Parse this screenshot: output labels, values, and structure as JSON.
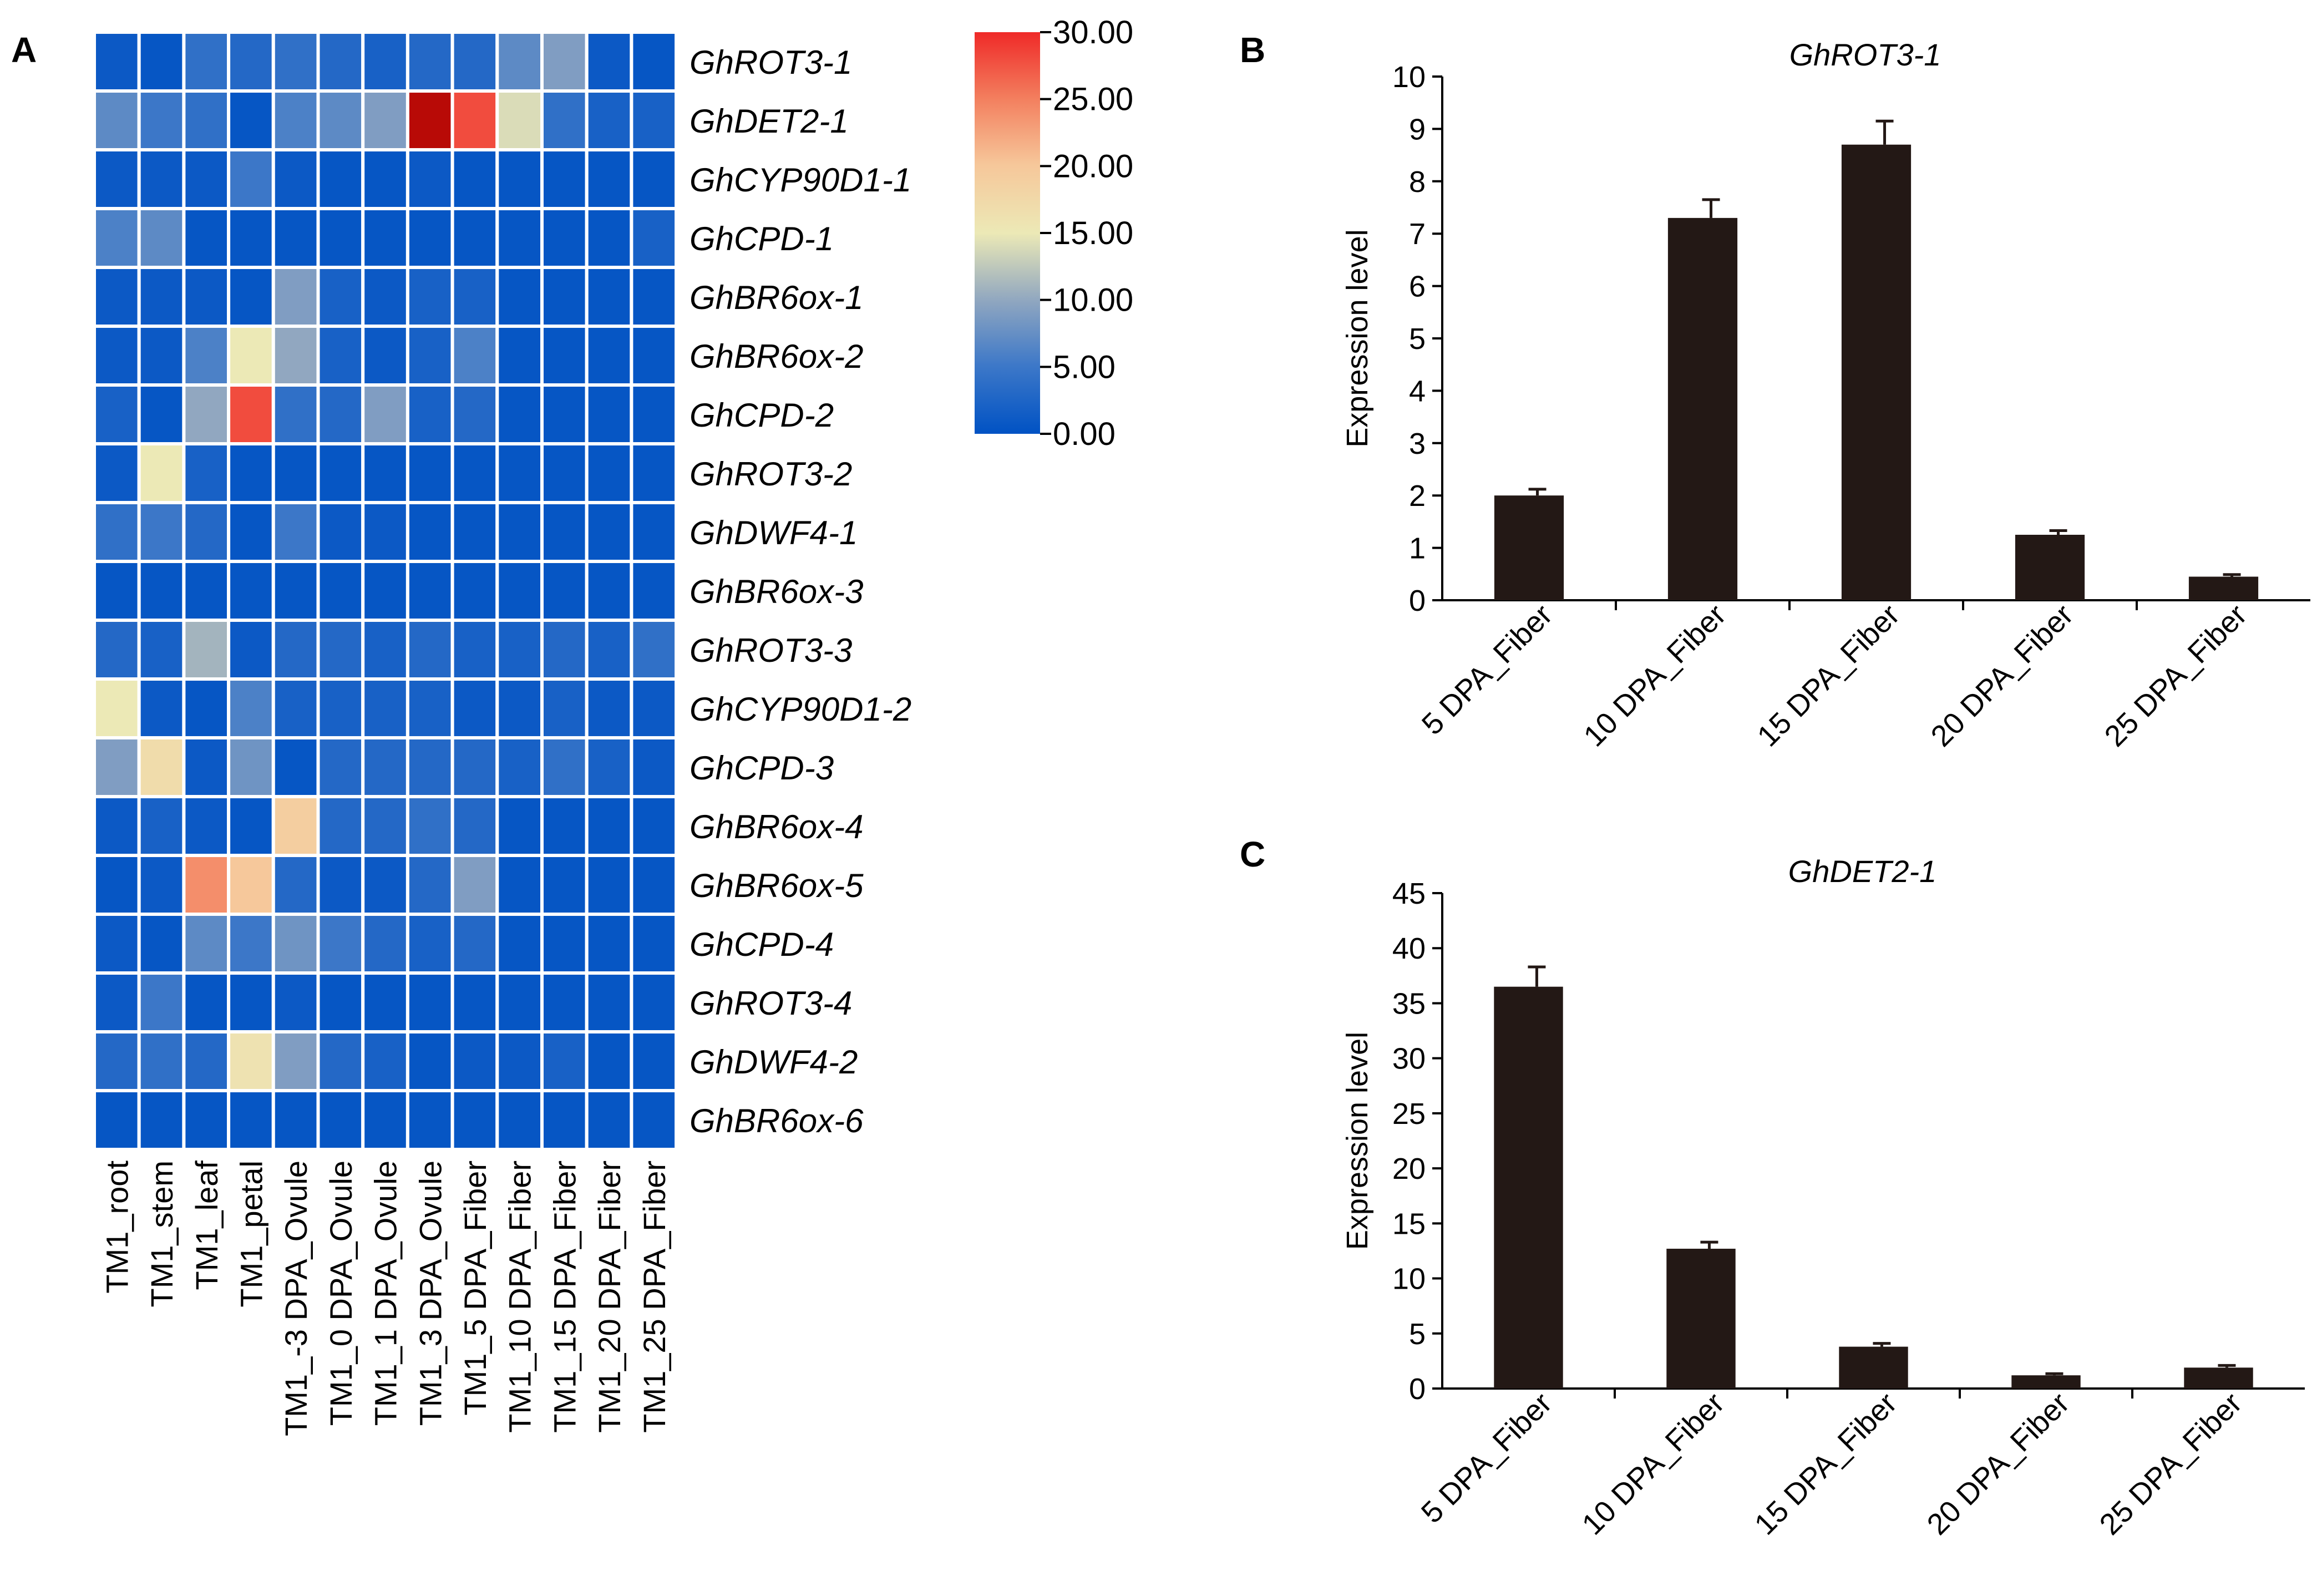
{
  "panel_labels": {
    "a": "A",
    "b": "B",
    "c": "C"
  },
  "colors": {
    "scale_low": "#0052c4",
    "scale_mid": "#ece9b6",
    "scale_high": "#ef2a28",
    "bar": "#231815",
    "cell_border": "#ffffff"
  },
  "chart_data": [
    {
      "type": "heatmap",
      "id": "panel-a",
      "rows": [
        "GhROT3-1",
        "GhDET2-1",
        "GhCYP90D1-1",
        "GhCPD-1",
        "GhBR6ox-1",
        "GhBR6ox-2",
        "GhCPD-2",
        "GhROT3-2",
        "GhDWF4-1",
        "GhBR6ox-3",
        "GhROT3-3",
        "GhCYP90D1-2",
        "GhCPD-3",
        "GhBR6ox-4",
        "GhBR6ox-5",
        "GhCPD-4",
        "GhROT3-4",
        "GhDWF4-2",
        "GhBR6ox-6"
      ],
      "columns": [
        "TM1_root",
        "TM1_stem",
        "TM1_leaf",
        "TM1_petal",
        "TM1_-3 DPA_Ovule",
        "TM1_0 DPA_Ovule",
        "TM1_1 DPA_Ovule",
        "TM1_3 DPA_Ovule",
        "TM1_5 DPA_Fiber",
        "TM1_10 DPA_Fiber",
        "TM1_15 DPA_Fiber",
        "TM1_20 DPA_Fiber",
        "TM1_25 DPA_Fiber"
      ],
      "values": [
        [
          1,
          0.5,
          4,
          3,
          4,
          3,
          2,
          3,
          3,
          7,
          9,
          1,
          0.5
        ],
        [
          7,
          5,
          4,
          0.5,
          6,
          7,
          9,
          30,
          28,
          14,
          4,
          2,
          2
        ],
        [
          1,
          1,
          1,
          5,
          1,
          0.5,
          0.5,
          1,
          0.5,
          0.5,
          0.5,
          0.5,
          0.5
        ],
        [
          6,
          7,
          0.5,
          0.5,
          0.5,
          0.5,
          0.5,
          0.5,
          0.5,
          0.5,
          0.5,
          0.5,
          2
        ],
        [
          1,
          1,
          1,
          0.5,
          9,
          2,
          1,
          2,
          2,
          0.5,
          0.5,
          0.5,
          0.5
        ],
        [
          1,
          1,
          6,
          15,
          10,
          2,
          1,
          2,
          6,
          0.5,
          0.5,
          0.5,
          0.5
        ],
        [
          2,
          0.5,
          10,
          28,
          4,
          3,
          9,
          2,
          3,
          0.5,
          0.5,
          0.5,
          0.5
        ],
        [
          1,
          15,
          2,
          0.5,
          0.5,
          0.5,
          0.5,
          0.5,
          0.5,
          0.5,
          0.5,
          0.5,
          0.5
        ],
        [
          4,
          5,
          3,
          0.5,
          5,
          1,
          1,
          0.5,
          0.5,
          0.5,
          0.5,
          0.5,
          0.5
        ],
        [
          0.5,
          0.5,
          0.5,
          0.5,
          0.5,
          0.5,
          0.5,
          0.5,
          0.5,
          0.5,
          0.5,
          0.5,
          0.5
        ],
        [
          3,
          2,
          11,
          1,
          3,
          3,
          2,
          3,
          2,
          2,
          3,
          2,
          4
        ],
        [
          15,
          1,
          0.5,
          6,
          2,
          2,
          2,
          2,
          1,
          1,
          2,
          1,
          1
        ],
        [
          9,
          17,
          1,
          8,
          0.5,
          3,
          3,
          3,
          3,
          2,
          4,
          2,
          1
        ],
        [
          1,
          2,
          1,
          0.5,
          19,
          3,
          3,
          4,
          3,
          0.5,
          0.5,
          0.5,
          0.5
        ],
        [
          0.5,
          1,
          24,
          20,
          3,
          1,
          1,
          3,
          9,
          0.5,
          0.5,
          0.5,
          0.5
        ],
        [
          1,
          0.5,
          7,
          5,
          8,
          5,
          3,
          2,
          3,
          0.5,
          0.5,
          0.5,
          0.5
        ],
        [
          1,
          5,
          0.5,
          0.5,
          1,
          0.5,
          0.5,
          0.5,
          0.5,
          0.5,
          0.5,
          0.5,
          0.5
        ],
        [
          3,
          4,
          3,
          16,
          9,
          3,
          2,
          0.5,
          1,
          1,
          2,
          0.5,
          0.5
        ],
        [
          0.5,
          0.5,
          0.5,
          0.5,
          0.5,
          0.5,
          0.5,
          0.5,
          0.5,
          0.5,
          0.5,
          0.5,
          0.5
        ]
      ],
      "colorbar": {
        "min": 0,
        "max": 30,
        "tick_labels": [
          "30.00",
          "25.00",
          "20.00",
          "15.00",
          "10.00",
          "5.00",
          "0.00"
        ]
      }
    },
    {
      "type": "bar",
      "id": "panel-b",
      "title": "GhROT3-1",
      "xlabel": "",
      "ylabel": "Expression level",
      "categories": [
        "5 DPA_Fiber",
        "10 DPA_Fiber",
        "15 DPA_Fiber",
        "20 DPA_Fiber",
        "25 DPA_Fiber"
      ],
      "values": [
        2.0,
        7.3,
        8.7,
        1.25,
        0.45
      ],
      "errors": [
        0.12,
        0.35,
        0.45,
        0.08,
        0.04
      ],
      "ylim": [
        0,
        10
      ],
      "yticks": [
        0,
        1,
        2,
        3,
        4,
        5,
        6,
        7,
        8,
        9,
        10
      ]
    },
    {
      "type": "bar",
      "id": "panel-c",
      "title": "GhDET2-1",
      "xlabel": "",
      "ylabel": "Expression level",
      "categories": [
        "5 DPA_Fiber",
        "10 DPA_Fiber",
        "15 DPA_Fiber",
        "20 DPA_Fiber",
        "25 DPA_Fiber"
      ],
      "values": [
        36.5,
        12.7,
        3.8,
        1.2,
        1.9
      ],
      "errors": [
        1.8,
        0.6,
        0.3,
        0.15,
        0.2
      ],
      "ylim": [
        0,
        45
      ],
      "yticks": [
        0,
        5,
        10,
        15,
        20,
        25,
        30,
        35,
        40,
        45
      ]
    }
  ]
}
